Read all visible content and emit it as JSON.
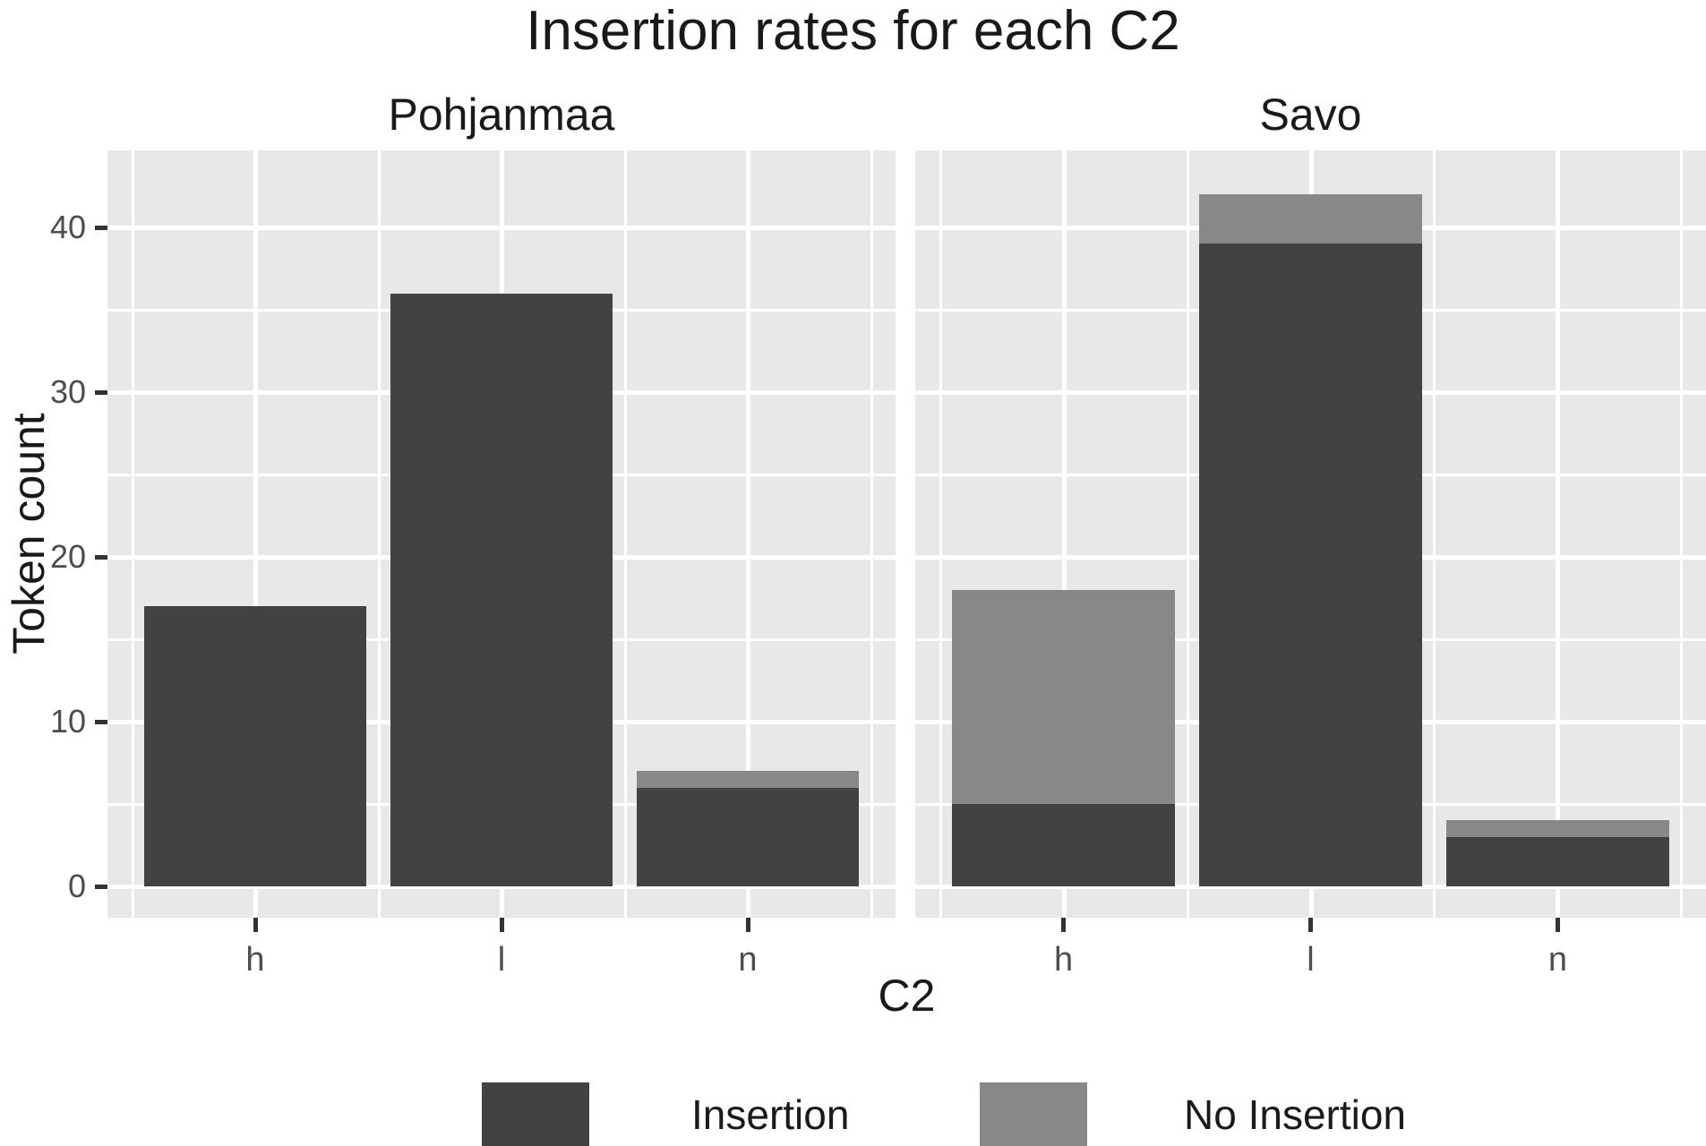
{
  "title": "Insertion rates for each C2",
  "chart_data": {
    "type": "bar",
    "stacked": true,
    "title": "Insertion rates for each C2",
    "xlabel": "C2",
    "ylabel": "Token count",
    "categories": [
      "h",
      "l",
      "n"
    ],
    "facets": [
      {
        "name": "Pohjanmaa",
        "series": [
          {
            "name": "Insertion",
            "values": [
              17,
              36,
              6
            ]
          },
          {
            "name": "No Insertion",
            "values": [
              0,
              0,
              1
            ]
          }
        ],
        "stack_totals": [
          17,
          36,
          7
        ]
      },
      {
        "name": "Savo",
        "series": [
          {
            "name": "Insertion",
            "values": [
              5,
              39,
              3
            ]
          },
          {
            "name": "No Insertion",
            "values": [
              13,
              3,
              1
            ]
          }
        ],
        "stack_totals": [
          18,
          42,
          4
        ]
      }
    ],
    "y_axis": {
      "label": "Token count",
      "ticks": [
        0,
        10,
        20,
        30,
        40
      ],
      "minor_ticks": [
        5,
        15,
        25,
        35
      ],
      "range": [
        0,
        44
      ],
      "grid": true
    },
    "x_axis": {
      "label": "C2",
      "ticks": [
        "h",
        "l",
        "n"
      ]
    },
    "legend": {
      "position": "bottom",
      "entries": [
        {
          "label": "Insertion",
          "color": "#424242"
        },
        {
          "label": "No Insertion",
          "color": "#888888"
        }
      ]
    },
    "colors": {
      "insertion_bar": "#424242",
      "no_insertion_bar": "#888888",
      "panel_background": "#E8E8E8",
      "strip_background": "#D3D3D3",
      "gridline": "#FFFFFF",
      "tick_mark": "#333333",
      "tick_text": "#4D4D4D",
      "text": "#1A1A1A"
    }
  }
}
